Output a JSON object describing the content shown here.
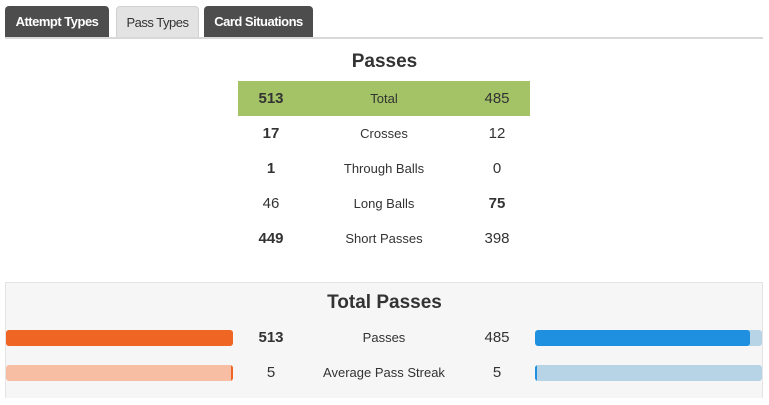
{
  "tabs": [
    {
      "label": "Attempt Types",
      "active": false
    },
    {
      "label": "Pass Types",
      "active": true
    },
    {
      "label": "Card Situations",
      "active": false
    }
  ],
  "passes": {
    "title": "Passes",
    "rows": [
      {
        "left": "513",
        "label": "Total",
        "right": "485",
        "left_bold": true,
        "right_bold": false
      },
      {
        "left": "17",
        "label": "Crosses",
        "right": "12",
        "left_bold": true,
        "right_bold": false
      },
      {
        "left": "1",
        "label": "Through Balls",
        "right": "0",
        "left_bold": true,
        "right_bold": false
      },
      {
        "left": "46",
        "label": "Long Balls",
        "right": "75",
        "left_bold": false,
        "right_bold": true
      },
      {
        "left": "449",
        "label": "Short Passes",
        "right": "398",
        "left_bold": true,
        "right_bold": false
      }
    ],
    "highlight_color": "#a3c366"
  },
  "total_passes": {
    "title": "Total Passes",
    "rows": [
      {
        "left": "513",
        "label": "Passes",
        "right": "485",
        "left_bold": true,
        "right_bold": false,
        "left_fill": 1.0,
        "right_fill": 0.945,
        "left_color": "#ef6523",
        "left_track": "#ef6523",
        "right_color": "#1f8fe0",
        "right_track": "#b7d4e6"
      },
      {
        "left": "5",
        "label": "Average Pass Streak",
        "right": "5",
        "left_bold": false,
        "right_bold": false,
        "left_fill": 0.01,
        "right_fill": 0.01,
        "left_color": "#ef6523",
        "left_track": "#f7bea4",
        "right_color": "#1f8fe0",
        "right_track": "#b7d4e6"
      }
    ]
  },
  "colors": {
    "tab_dark": "#4d4d4d",
    "tab_light": "#e3e3e3",
    "home": "#ef6523",
    "away": "#1f8fe0"
  }
}
